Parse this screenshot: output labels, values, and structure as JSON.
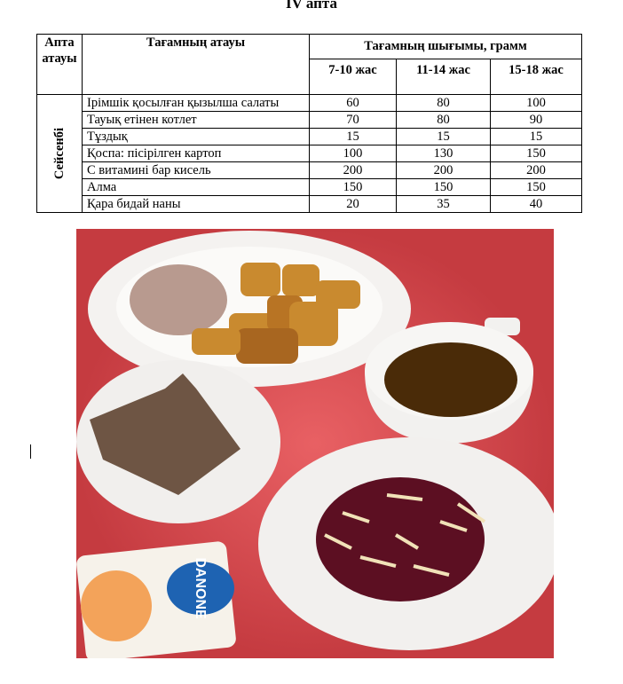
{
  "title": "IV апта",
  "table": {
    "headers": {
      "week_name": "Апта атауы",
      "dish_name": "Тағамның атауы",
      "yield": "Тағамның шығымы, грамм",
      "ages": [
        "7-10 жас",
        "11-14 жас",
        "15-18 жас"
      ]
    },
    "day": "Сейсенбі",
    "rows": [
      {
        "name": "Ірімшік қосылған қызылша салаты",
        "v": [
          "60",
          "80",
          "100"
        ]
      },
      {
        "name": "Тауық етінен котлет",
        "v": [
          "70",
          "80",
          "90"
        ]
      },
      {
        "name": "Тұздық",
        "v": [
          "15",
          "15",
          "15"
        ]
      },
      {
        "name": "Қоспа:  пісірілген картоп",
        "v": [
          "100",
          "130",
          "150"
        ]
      },
      {
        "name": "С витамині бар кисель",
        "v": [
          "200",
          "200",
          "200"
        ]
      },
      {
        "name": "Алма",
        "v": [
          "150",
          "150",
          "150"
        ]
      },
      {
        "name": "Қара бидай наны",
        "v": [
          "20",
          "35",
          "40"
        ]
      }
    ]
  },
  "photo": {
    "yogurt_logo": "DANONE",
    "tray_color": "#e0454c"
  }
}
